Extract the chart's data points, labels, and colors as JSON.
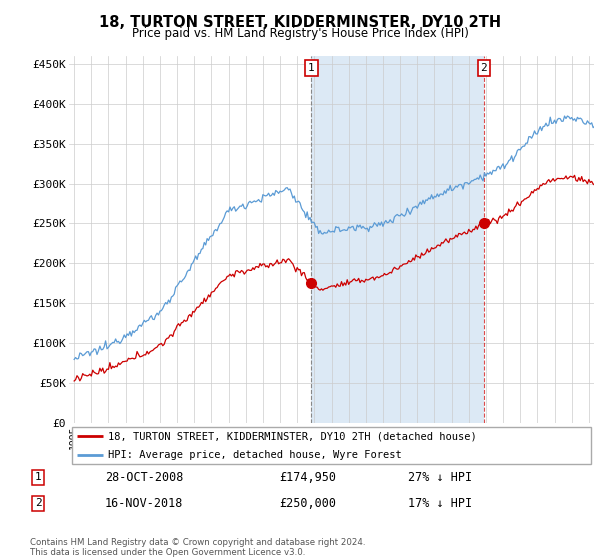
{
  "title": "18, TURTON STREET, KIDDERMINSTER, DY10 2TH",
  "subtitle": "Price paid vs. HM Land Registry's House Price Index (HPI)",
  "hpi_color": "#5b9bd5",
  "price_color": "#cc0000",
  "shade_color": "#dce9f5",
  "ylim": [
    0,
    460000
  ],
  "yticks": [
    0,
    50000,
    100000,
    150000,
    200000,
    250000,
    300000,
    350000,
    400000,
    450000
  ],
  "ytick_labels": [
    "£0",
    "£50K",
    "£100K",
    "£150K",
    "£200K",
    "£250K",
    "£300K",
    "£350K",
    "£400K",
    "£450K"
  ],
  "legend_line1": "18, TURTON STREET, KIDDERMINSTER, DY10 2TH (detached house)",
  "legend_line2": "HPI: Average price, detached house, Wyre Forest",
  "annotation1_label": "1",
  "annotation1_date": "28-OCT-2008",
  "annotation1_price": "£174,950",
  "annotation1_pct": "27% ↓ HPI",
  "annotation2_label": "2",
  "annotation2_date": "16-NOV-2018",
  "annotation2_price": "£250,000",
  "annotation2_pct": "17% ↓ HPI",
  "footnote": "Contains HM Land Registry data © Crown copyright and database right 2024.\nThis data is licensed under the Open Government Licence v3.0.",
  "marker1_x": 2008.83,
  "marker1_y": 174950,
  "marker2_x": 2018.88,
  "marker2_y": 250000,
  "xlim_left": 1994.7,
  "xlim_right": 2025.3
}
